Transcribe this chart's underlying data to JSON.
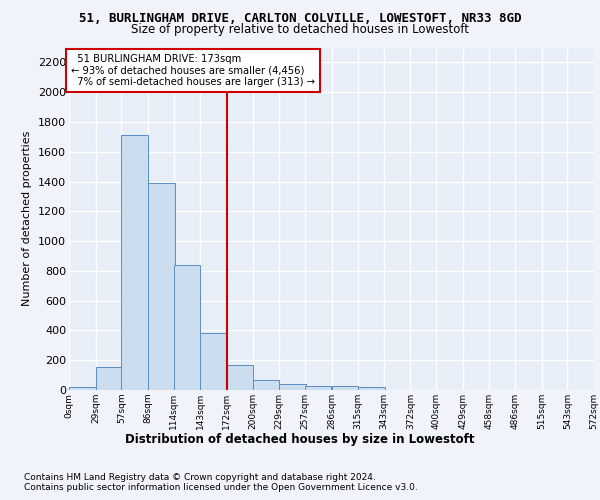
{
  "title1": "51, BURLINGHAM DRIVE, CARLTON COLVILLE, LOWESTOFT, NR33 8GD",
  "title2": "Size of property relative to detached houses in Lowestoft",
  "xlabel": "Distribution of detached houses by size in Lowestoft",
  "ylabel": "Number of detached properties",
  "footer1": "Contains HM Land Registry data © Crown copyright and database right 2024.",
  "footer2": "Contains public sector information licensed under the Open Government Licence v3.0.",
  "bar_values": [
    20,
    155,
    1710,
    1390,
    840,
    385,
    165,
    65,
    40,
    30,
    30,
    20,
    0,
    0,
    0,
    0,
    0,
    0,
    0
  ],
  "bin_edges": [
    0,
    29,
    57,
    86,
    114,
    143,
    172,
    200,
    229,
    257,
    286,
    315,
    343,
    372,
    400,
    429,
    458,
    486,
    515,
    543
  ],
  "tick_labels": [
    "0sqm",
    "29sqm",
    "57sqm",
    "86sqm",
    "114sqm",
    "143sqm",
    "172sqm",
    "200sqm",
    "229sqm",
    "257sqm",
    "286sqm",
    "315sqm",
    "343sqm",
    "372sqm",
    "400sqm",
    "429sqm",
    "458sqm",
    "486sqm",
    "515sqm",
    "543sqm",
    "572sqm"
  ],
  "bar_color": "#ccddf0",
  "bar_edge_color": "#5b8ec4",
  "vline_x": 172,
  "vline_color": "#cc0000",
  "annotation_text": "  51 BURLINGHAM DRIVE: 173sqm\n← 93% of detached houses are smaller (4,456)\n  7% of semi-detached houses are larger (313) →",
  "annotation_box_color": "#cc0000",
  "ylim": [
    0,
    2300
  ],
  "yticks": [
    0,
    200,
    400,
    600,
    800,
    1000,
    1200,
    1400,
    1600,
    1800,
    2000,
    2200
  ],
  "bg_color": "#f0f4fa",
  "plot_bg_color": "#e8eef8",
  "grid_color": "#ffffff"
}
